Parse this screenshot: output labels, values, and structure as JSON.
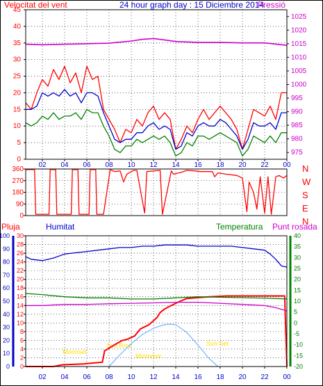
{
  "header": {
    "left": "Velocitat del vent",
    "title": "24 hour graph day : 15 Diciembre 2014",
    "right": "Pressió"
  },
  "wind_dir_labels": [
    "N",
    "W",
    "S",
    "E",
    "N"
  ],
  "lower_header": {
    "rain": "Pluja",
    "humidity": "Humitat",
    "temperature": "Temperatura",
    "dew": "Punt rosada"
  },
  "sun_labels": {
    "moonset": "Moonset",
    "sunrise": "Sun Rise",
    "sunset": "Sun Set",
    "moonrise": "Moonrise"
  },
  "colors": {
    "gust": "#ff0000",
    "speed": "#0000cc",
    "avg": "#008000",
    "pressure": "#cc00cc",
    "winddir": "#ff0000",
    "rain": "#ff0000",
    "humidity": "#0000cc",
    "temperature": "#008000",
    "dew": "#cc00cc",
    "sunpath": "#80b8ff",
    "sunlabel": "#ffe000",
    "axis": "#ff0000",
    "grid": "#000000",
    "title": "#0000cc",
    "frame": "#000000"
  },
  "chart_data": [
    {
      "type": "line",
      "name": "wind-pressure",
      "x_ticks": [
        "02",
        "04",
        "06",
        "08",
        "10",
        "12",
        "14",
        "16",
        "18",
        "20",
        "22",
        "00"
      ],
      "x_range_hours": [
        0.5,
        24
      ],
      "left_axis": {
        "ticks": [
          0,
          5,
          10,
          15,
          20,
          25,
          30,
          35,
          40,
          45
        ],
        "range": [
          0,
          45
        ]
      },
      "right_axis": {
        "ticks": [
          975,
          980,
          985,
          990,
          995,
          1000,
          1005,
          1010,
          1015,
          1020,
          1025
        ],
        "range": [
          972.5,
          1027.5
        ]
      },
      "series": [
        {
          "key": "gust",
          "axis": "left",
          "x": [
            0.5,
            1,
            1.5,
            2,
            2.5,
            3,
            3.5,
            4,
            4.5,
            5,
            5.5,
            6,
            6.5,
            7,
            7.5,
            8,
            8.5,
            9,
            9.5,
            10,
            10.5,
            11,
            11.5,
            12,
            12.5,
            13,
            13.5,
            14,
            14.5,
            15,
            15.5,
            16,
            16.5,
            17,
            17.5,
            18,
            18.5,
            19,
            19.5,
            20,
            20.5,
            21,
            21.5,
            22,
            22.5,
            23,
            23.5,
            24
          ],
          "values": [
            17,
            15,
            20,
            24,
            22,
            27,
            24,
            28,
            23,
            26,
            20,
            28,
            24,
            25,
            15,
            12,
            9,
            5,
            9,
            8,
            12,
            10,
            14,
            16,
            12,
            14,
            12,
            3,
            6,
            10,
            8,
            12,
            15,
            12,
            14,
            16,
            14,
            12,
            9,
            3,
            9,
            15,
            14,
            13,
            16,
            12,
            20,
            20
          ]
        },
        {
          "key": "speed",
          "axis": "left",
          "x": [
            0.5,
            1,
            1.5,
            2,
            2.5,
            3,
            3.5,
            4,
            4.5,
            5,
            5.5,
            6,
            6.5,
            7,
            7.5,
            8,
            8.5,
            9,
            9.5,
            10,
            10.5,
            11,
            11.5,
            12,
            12.5,
            13,
            13.5,
            14,
            14.5,
            15,
            15.5,
            16,
            16.5,
            17,
            17.5,
            18,
            18.5,
            19,
            19.5,
            20,
            20.5,
            21,
            21.5,
            22,
            22.5,
            23,
            23.5,
            24
          ],
          "values": [
            15,
            15,
            16,
            20,
            19,
            20,
            19,
            21,
            19,
            20,
            17,
            20,
            20,
            19,
            14,
            10,
            6,
            5,
            6,
            6,
            8,
            8,
            10,
            11,
            9,
            10,
            9,
            3,
            4,
            8,
            7,
            10,
            11,
            10,
            10,
            12,
            11,
            9,
            7,
            3,
            6,
            11,
            10,
            10,
            11,
            9,
            14,
            14
          ]
        },
        {
          "key": "avg",
          "axis": "left",
          "x": [
            0.5,
            1,
            1.5,
            2,
            2.5,
            3,
            3.5,
            4,
            4.5,
            5,
            5.5,
            6,
            6.5,
            7,
            7.5,
            8,
            8.5,
            9,
            9.5,
            10,
            10.5,
            11,
            11.5,
            12,
            12.5,
            13,
            13.5,
            14,
            14.5,
            15,
            15.5,
            16,
            16.5,
            17,
            17.5,
            18,
            18.5,
            19,
            19.5,
            20,
            20.5,
            21,
            21.5,
            22,
            22.5,
            23,
            23.5,
            24
          ],
          "values": [
            11,
            10,
            11,
            13,
            12,
            14,
            12,
            13,
            13,
            14,
            12,
            15,
            14,
            14,
            10,
            7,
            3,
            2,
            4,
            4,
            6,
            5,
            6,
            7,
            6,
            7,
            5,
            1,
            2,
            5,
            4,
            7,
            7,
            6,
            7,
            8,
            7,
            6,
            5,
            1,
            3,
            7,
            6,
            5,
            7,
            5,
            8,
            8
          ]
        },
        {
          "key": "pressure",
          "axis": "right",
          "x": [
            0.5,
            2,
            4,
            6,
            8,
            10,
            11,
            12,
            13,
            14,
            16,
            18,
            20,
            22,
            24
          ],
          "values": [
            1014.8,
            1014.6,
            1014.8,
            1015.0,
            1015.2,
            1016.0,
            1016.6,
            1016.9,
            1016.4,
            1015.8,
            1015.5,
            1015.5,
            1015.3,
            1015.3,
            1014.4
          ]
        }
      ]
    },
    {
      "type": "line",
      "name": "wind-direction",
      "x_range_hours": [
        0.5,
        24
      ],
      "y_ticks": [
        0,
        90,
        180,
        270,
        360
      ],
      "y_range": [
        0,
        360
      ],
      "series": [
        {
          "key": "winddir",
          "x": [
            0.5,
            1.3,
            1.4,
            2.6,
            2.7,
            3.2,
            3.3,
            4.6,
            4.7,
            5.2,
            5.3,
            6.0,
            6.2,
            6.3,
            6.8,
            6.9,
            7.5,
            8.1,
            8.5,
            9.0,
            9.3,
            9.6,
            10.2,
            10.5,
            11.2,
            11.4,
            12.6,
            12.8,
            13.6,
            13.8,
            14.5,
            15.0,
            15.8,
            16.2,
            17.3,
            17.5,
            17.8,
            18.5,
            19.5,
            20.0,
            20.4,
            20.6,
            21.0,
            21.3,
            21.6,
            22.0,
            22.3,
            22.6,
            23.0,
            23.3,
            23.7,
            24
          ],
          "values": [
            355,
            355,
            10,
            10,
            355,
            355,
            10,
            10,
            355,
            355,
            10,
            10,
            10,
            355,
            355,
            10,
            10,
            355,
            340,
            345,
            260,
            320,
            350,
            350,
            20,
            340,
            350,
            10,
            345,
            320,
            335,
            350,
            345,
            340,
            340,
            300,
            330,
            320,
            310,
            290,
            30,
            260,
            180,
            50,
            300,
            20,
            300,
            10,
            300,
            310,
            290,
            310
          ]
        }
      ]
    },
    {
      "type": "line",
      "name": "rain-humidity-temperature",
      "x_ticks": [
        "02",
        "04",
        "06",
        "08",
        "10",
        "12",
        "14",
        "16",
        "18",
        "20",
        "22",
        "00"
      ],
      "x_range_hours": [
        0.5,
        24
      ],
      "humidity_axis": {
        "ticks": [
          0,
          10,
          20,
          30,
          40,
          50,
          60,
          70,
          80,
          90,
          100
        ],
        "range": [
          0,
          100
        ]
      },
      "rain_axis": {
        "ticks": [
          0,
          2,
          4,
          6,
          8,
          10,
          12,
          14,
          16,
          18,
          20,
          22,
          24,
          26,
          28,
          30
        ],
        "range": [
          0,
          30
        ]
      },
      "temperature_axis": {
        "ticks": [
          -20,
          -15,
          -10,
          -5,
          0,
          5,
          10,
          15,
          20,
          25,
          30,
          35,
          40
        ],
        "range": [
          -20,
          40
        ]
      },
      "series": [
        {
          "key": "rain",
          "axis": "rain",
          "x": [
            0.5,
            3,
            3.8,
            5.7,
            7.4,
            7.6,
            8.5,
            9.2,
            9.6,
            10.3,
            10.8,
            11.6,
            12.3,
            12.6,
            13.0,
            13.6,
            14.4,
            15.0,
            17.0,
            18.6,
            23.8,
            24
          ],
          "values": [
            0,
            0,
            0.4,
            0.6,
            1.0,
            3.6,
            5.0,
            6.0,
            6.2,
            7.0,
            8.6,
            9.6,
            11.2,
            12.4,
            13.2,
            14.0,
            15.0,
            15.6,
            16.0,
            16.2,
            16.2,
            0
          ]
        },
        {
          "key": "humidity",
          "axis": "humidity",
          "x": [
            0.5,
            1,
            2,
            3,
            4,
            5,
            6,
            7,
            8,
            9,
            10,
            11,
            12,
            13,
            14,
            15,
            16,
            17,
            18,
            19,
            20,
            21,
            22,
            22.5,
            23,
            23.5,
            24
          ],
          "values": [
            84,
            82,
            81,
            83,
            86,
            87,
            88,
            89,
            90,
            91,
            91,
            92,
            92,
            93,
            93,
            93,
            92,
            92,
            92,
            92,
            91,
            90,
            89,
            86,
            82,
            77,
            76
          ]
        },
        {
          "key": "temperature",
          "axis": "temperature",
          "x": [
            0.5,
            2,
            4,
            6,
            8,
            10,
            12,
            14,
            16,
            18,
            20,
            22,
            23,
            24
          ],
          "values": [
            13.5,
            13.0,
            12.0,
            11.5,
            11.5,
            11.0,
            11.0,
            11.5,
            12.0,
            11.8,
            11.6,
            11.4,
            11.2,
            11.0
          ]
        },
        {
          "key": "dew",
          "axis": "temperature",
          "x": [
            0.5,
            2,
            4,
            6,
            8,
            10,
            12,
            14,
            16,
            18,
            20,
            22,
            23,
            24
          ],
          "values": [
            8.0,
            8.0,
            8.5,
            8.5,
            8.8,
            9.0,
            9.2,
            9.5,
            9.5,
            9.0,
            8.5,
            8.0,
            7.0,
            5.5
          ]
        },
        {
          "key": "sunpath",
          "axis": "temperature",
          "x": [
            8.0,
            9,
            10,
            11,
            12,
            13,
            13.5,
            14,
            15,
            16,
            17,
            17.8
          ],
          "values": [
            -20,
            -14.5,
            -9.5,
            -5.3,
            -2.4,
            -0.8,
            -0.6,
            -0.8,
            -4.4,
            -10.2,
            -16.3,
            -20
          ]
        }
      ]
    }
  ]
}
